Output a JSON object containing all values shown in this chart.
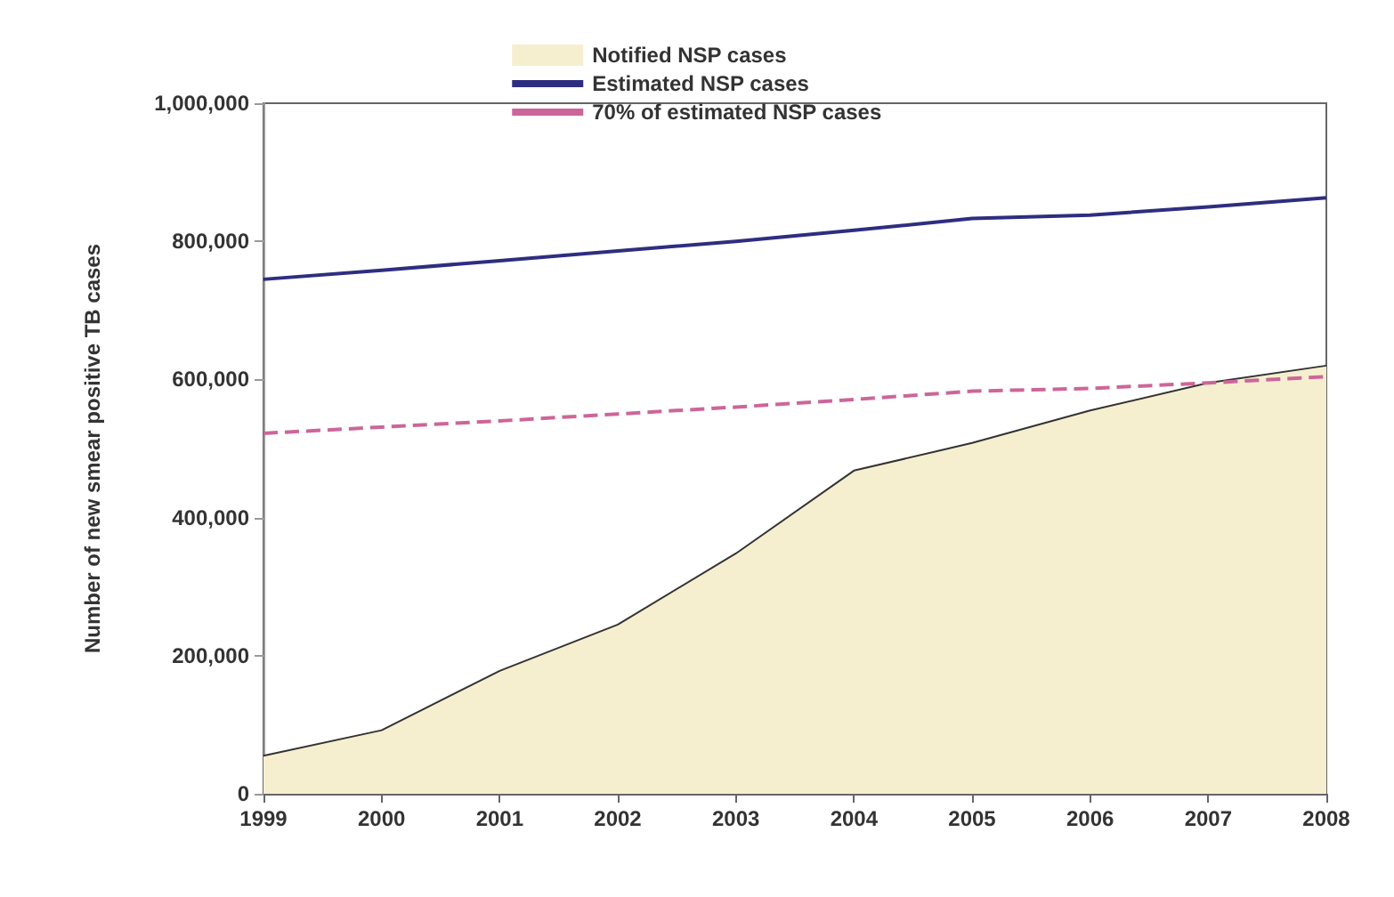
{
  "chart_data": {
    "type": "line",
    "ylabel": "Number of new smear positive TB cases",
    "categories": [
      "1999",
      "2000",
      "2001",
      "2002",
      "2003",
      "2004",
      "2005",
      "2006",
      "2007",
      "2008"
    ],
    "ylim": [
      0,
      1000000
    ],
    "yticks": [
      {
        "value": 0,
        "label": "0"
      },
      {
        "value": 200000,
        "label": "200,000"
      },
      {
        "value": 400000,
        "label": "400,000"
      },
      {
        "value": 600000,
        "label": "600,000"
      },
      {
        "value": 800000,
        "label": "800,000"
      },
      {
        "value": 1000000,
        "label": "1,000,000"
      }
    ],
    "grid": false,
    "legend": "top",
    "marker": "none",
    "series": [
      {
        "name": "Notified NSP cases",
        "type": "area",
        "color": "#f6efcf",
        "values": [
          55000,
          92000,
          178000,
          245000,
          348000,
          468000,
          508000,
          555000,
          595000,
          620000
        ]
      },
      {
        "name": "Estimated NSP cases",
        "type": "line",
        "color": "#2e2e80",
        "line_style": "solid",
        "values": [
          745000,
          758000,
          772000,
          786000,
          800000,
          816000,
          833000,
          838000,
          850000,
          863000
        ]
      },
      {
        "name": "70% of estimated NSP cases",
        "type": "line",
        "color": "#cc6699",
        "line_style": "dashed",
        "values": [
          522000,
          531000,
          540000,
          550000,
          560000,
          571000,
          583000,
          587000,
          595000,
          604000
        ]
      }
    ]
  }
}
